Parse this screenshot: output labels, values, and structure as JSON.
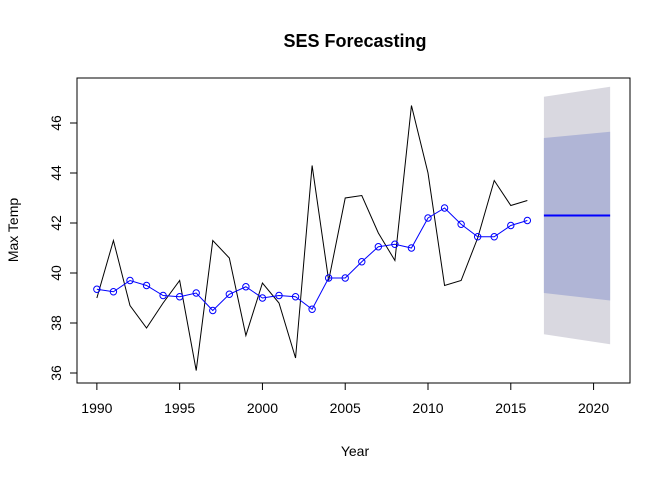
{
  "chart_data": {
    "type": "line",
    "title": "SES Forecasting",
    "xlabel": "Year",
    "ylabel": "Max Temp",
    "xlim": [
      1988.8,
      2022.2
    ],
    "ylim": [
      35.6,
      47.8
    ],
    "x_ticks": [
      1990,
      1995,
      2000,
      2005,
      2010,
      2015,
      2020
    ],
    "y_ticks": [
      36,
      38,
      40,
      42,
      44,
      46
    ],
    "grid": false,
    "colors": {
      "observed": "#000000",
      "fitted": "#0000ff",
      "forecast": "#0000ff",
      "pi80": "#b0b5d6",
      "pi95": "#d9d8e0"
    },
    "series": [
      {
        "x": [
          1990,
          1991,
          1992,
          1993,
          1994,
          1995,
          1996,
          1997,
          1998,
          1999,
          2000,
          2001,
          2002,
          2003,
          2004,
          2005,
          2006,
          2007,
          2008,
          2009,
          2010,
          2011,
          2012,
          2013,
          2014,
          2015,
          2016
        ],
        "values": [
          39.0,
          41.3,
          38.7,
          37.8,
          38.8,
          39.7,
          36.1,
          41.3,
          40.6,
          37.5,
          39.6,
          38.8,
          36.6,
          44.3,
          39.7,
          43.0,
          43.1,
          41.6,
          40.5,
          46.7,
          44.0,
          39.5,
          39.7,
          41.4,
          43.7,
          42.7,
          42.9
        ]
      },
      {
        "x": [
          1990,
          1991,
          1992,
          1993,
          1994,
          1995,
          1996,
          1997,
          1998,
          1999,
          2000,
          2001,
          2002,
          2003,
          2004,
          2005,
          2006,
          2007,
          2008,
          2009,
          2010,
          2011,
          2012,
          2013,
          2014,
          2015,
          2016
        ],
        "values": [
          39.35,
          39.25,
          39.7,
          39.5,
          39.1,
          39.05,
          39.2,
          38.5,
          39.15,
          39.45,
          39.0,
          39.1,
          39.05,
          38.55,
          39.8,
          39.8,
          40.45,
          41.05,
          41.15,
          41.0,
          42.2,
          42.6,
          41.95,
          41.45,
          41.45,
          41.9,
          42.1
        ]
      }
    ],
    "forecast": {
      "x": [
        2017,
        2021
      ],
      "mean": [
        42.3,
        42.3
      ],
      "lower80": [
        39.2,
        38.9
      ],
      "upper80": [
        45.4,
        45.65
      ],
      "lower95": [
        37.55,
        37.15
      ],
      "upper95": [
        47.05,
        47.45
      ]
    }
  }
}
